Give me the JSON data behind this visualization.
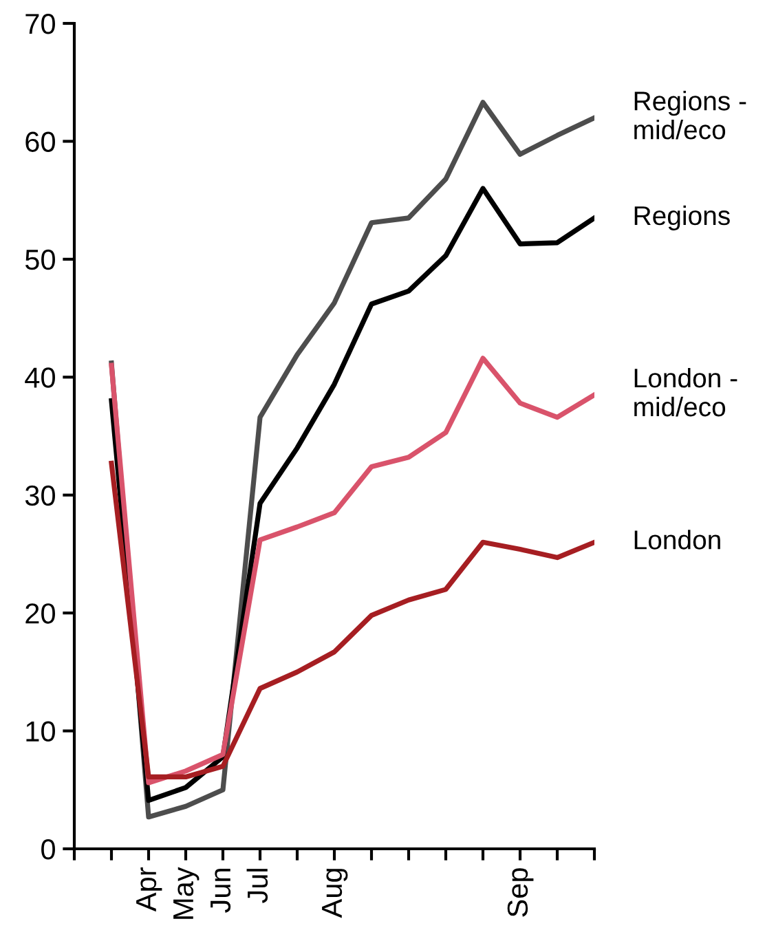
{
  "chart_data": {
    "type": "line",
    "categories": [
      null,
      "Apr",
      "May",
      "Jun",
      "Jul",
      null,
      "Aug",
      null,
      null,
      null,
      null,
      "Sep",
      null,
      null
    ],
    "series": [
      {
        "name": "Regions -\nmid/eco",
        "color": "#4d4d4d",
        "values": [
          41.2,
          2.7,
          3.6,
          5.0,
          36.6,
          41.9,
          46.3,
          53.1,
          53.5,
          56.8,
          63.3,
          58.9,
          60.5,
          62.0
        ]
      },
      {
        "name": "Regions",
        "color": "#000000",
        "values": [
          38.0,
          4.1,
          5.2,
          7.8,
          29.3,
          34.0,
          39.4,
          46.2,
          47.3,
          50.3,
          56.0,
          51.3,
          51.4,
          53.5
        ]
      },
      {
        "name": "London -\nmid/eco",
        "color": "#d9536b",
        "values": [
          41.0,
          5.6,
          6.6,
          8.0,
          26.2,
          27.3,
          28.5,
          32.4,
          33.2,
          35.3,
          41.6,
          37.8,
          36.6,
          38.5
        ]
      },
      {
        "name": "London",
        "color": "#a61e22",
        "values": [
          32.7,
          6.1,
          6.1,
          7.0,
          13.6,
          15.0,
          16.7,
          19.8,
          21.1,
          22.0,
          26.0,
          25.4,
          24.7,
          26.0
        ]
      }
    ],
    "ylim": [
      0,
      70
    ],
    "yticks": [
      0,
      10,
      20,
      30,
      40,
      50,
      60,
      70
    ],
    "grid": false,
    "legend": false,
    "marker": "none",
    "line_style": "solid"
  }
}
